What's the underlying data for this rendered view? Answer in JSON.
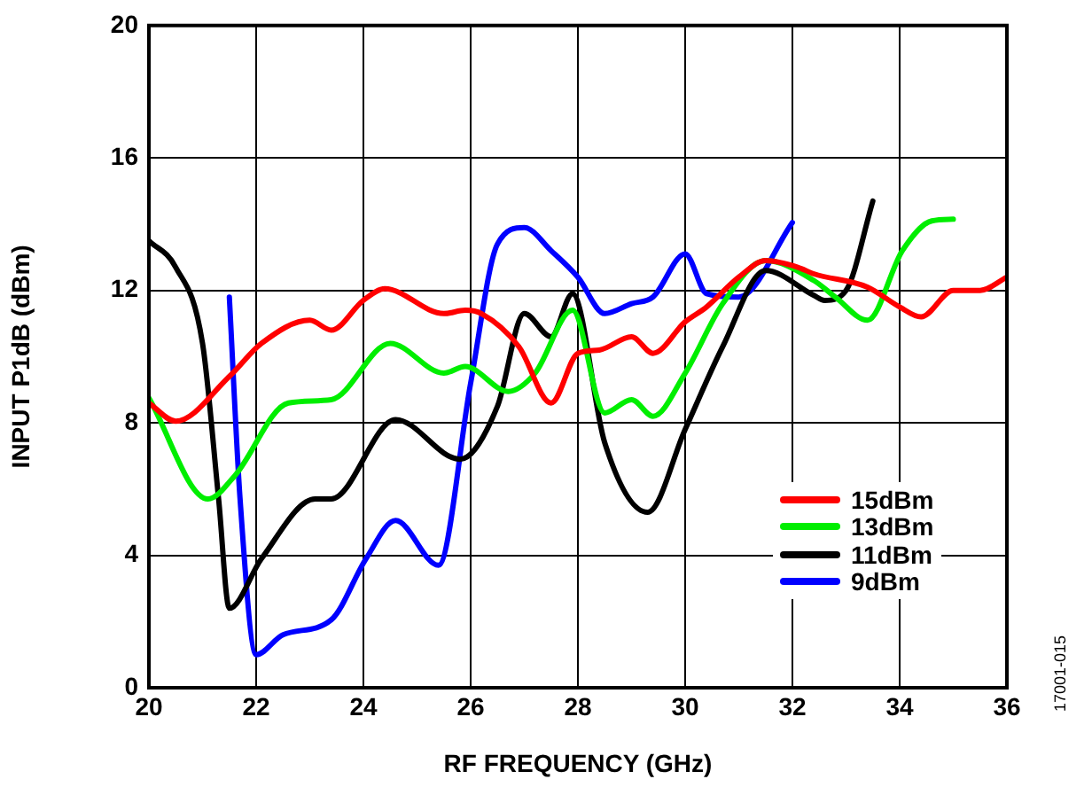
{
  "chart_data": {
    "type": "line",
    "xlabel": "RF FREQUENCY (GHz)",
    "ylabel": "INPUT P1dB (dBm)",
    "xlim": [
      20,
      36
    ],
    "xticks": [
      20,
      22,
      24,
      26,
      28,
      30,
      32,
      34,
      36
    ],
    "ylim": [
      0,
      20
    ],
    "yticks": [
      0,
      4,
      8,
      12,
      16,
      20
    ],
    "grid": true,
    "legend": "bottom right",
    "marker": "none",
    "line_style": "solid",
    "annotations": [
      "17001-015"
    ],
    "series": [
      {
        "name": "15dBm",
        "color": "#ff0000",
        "x": [
          20,
          20.5,
          21.5,
          22.1,
          23,
          23.4,
          24,
          24.4,
          25.5,
          25.9,
          26.2,
          26.9,
          27.5,
          28,
          28.4,
          29,
          29.4,
          30,
          30.4,
          31,
          31.5,
          32.1,
          32.4,
          33.4,
          34,
          34.4,
          35,
          35.5,
          36
        ],
        "values": [
          8.6,
          8.05,
          9.4,
          10.4,
          11.1,
          10.8,
          11.7,
          12.05,
          11.3,
          11.4,
          11.3,
          10.3,
          8.6,
          10.1,
          10.2,
          10.6,
          10.1,
          11.05,
          11.5,
          12.4,
          12.9,
          12.7,
          12.5,
          12.1,
          11.5,
          11.2,
          12,
          12,
          12.4
        ]
      },
      {
        "name": "13dBm",
        "color": "#00ee00",
        "x": [
          20,
          21.1,
          21.6,
          22.6,
          23.4,
          24.5,
          25.5,
          25.9,
          26.7,
          27.2,
          27.9,
          28.5,
          29,
          29.4,
          30,
          30.7,
          31.5,
          32.4,
          32.8,
          33.4,
          34.05,
          34.6,
          35
        ],
        "values": [
          8.75,
          5.7,
          6.4,
          8.6,
          8.7,
          10.4,
          9.5,
          9.7,
          8.95,
          9.5,
          11.4,
          8.3,
          8.7,
          8.2,
          9.5,
          11.6,
          12.9,
          12.3,
          11.8,
          11.1,
          13.2,
          14.1,
          14.15
        ]
      },
      {
        "name": "11dBm",
        "color": "#000000",
        "x": [
          20,
          20.5,
          21,
          21.3,
          21.5,
          22.1,
          23.1,
          23.4,
          24.6,
          25.8,
          26.5,
          27,
          27.5,
          27.9,
          28.5,
          29.3,
          30,
          30.7,
          31.5,
          32.4,
          32.6,
          33,
          33.5
        ],
        "values": [
          13.5,
          12.7,
          10.4,
          5.7,
          2.4,
          3.9,
          5.7,
          5.7,
          8.1,
          6.9,
          8.5,
          11.3,
          10.6,
          11.9,
          7.4,
          5.3,
          7.8,
          10.3,
          12.6,
          11.85,
          11.7,
          12,
          14.7
        ]
      },
      {
        "name": "9dBm",
        "color": "#0000ff",
        "x": [
          21.5,
          21.7,
          22,
          22.5,
          23.4,
          24.05,
          24.6,
          25.4,
          26,
          26.5,
          27,
          27.5,
          28,
          28.5,
          29,
          29.4,
          30,
          30.4,
          31,
          32
        ],
        "values": [
          11.8,
          5.7,
          1,
          1.6,
          2.05,
          3.9,
          5.05,
          3.7,
          9.2,
          13.4,
          13.9,
          13.2,
          12.4,
          11.3,
          11.6,
          11.8,
          13.1,
          11.9,
          11.8,
          14.05
        ]
      }
    ]
  }
}
